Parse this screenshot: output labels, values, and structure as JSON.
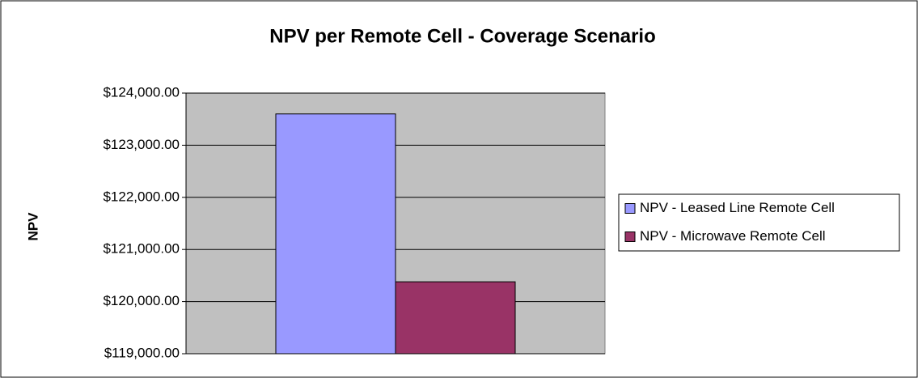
{
  "chart_data": {
    "type": "bar",
    "title": "NPV per Remote Cell - Coverage Scenario",
    "y_label": "NPV",
    "categories": [
      null
    ],
    "series": [
      {
        "name": "NPV - Leased Line Remote Cell",
        "color": "#9999ff",
        "values": [
          123600
        ]
      },
      {
        "name": "NPV - Microwave Remote Cell",
        "color": "#993366",
        "values": [
          120380
        ]
      }
    ],
    "ylim": [
      119000,
      124000
    ],
    "yticks": [
      {
        "value": 119000,
        "label": "$119,000.00"
      },
      {
        "value": 120000,
        "label": "$120,000.00"
      },
      {
        "value": 121000,
        "label": "$121,000.00"
      },
      {
        "value": 122000,
        "label": "$122,000.00"
      },
      {
        "value": 123000,
        "label": "$123,000.00"
      },
      {
        "value": 124000,
        "label": "$124,000.00"
      }
    ],
    "grid": true,
    "legend": "right",
    "plot_background": "#c0c0c0"
  }
}
